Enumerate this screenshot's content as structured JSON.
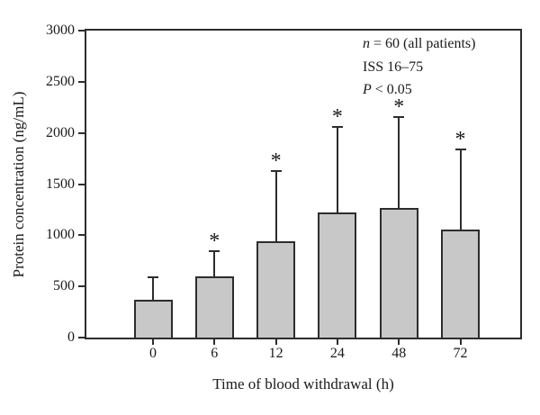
{
  "chart_data": {
    "type": "bar",
    "categories": [
      "0",
      "6",
      "12",
      "24",
      "48",
      "72"
    ],
    "values": [
      370,
      600,
      940,
      1220,
      1270,
      1060
    ],
    "upper_errors": [
      210,
      240,
      680,
      830,
      880,
      770
    ],
    "significant": [
      false,
      true,
      true,
      true,
      true,
      true
    ],
    "significance_marker": "*",
    "xlabel": "Time of blood withdrawal (h)",
    "ylabel": "Protein concentration (ng/mL)",
    "ylim": [
      0,
      3000
    ],
    "yticks": [
      0,
      500,
      1000,
      1500,
      2000,
      2500,
      3000
    ],
    "grid": false,
    "legend_position": "none",
    "bar_fill": "#c8c8c8",
    "bar_border": "#2d2d2d",
    "axis_color": "#2d2d2d"
  },
  "annotation": {
    "line1_var": "n",
    "line1_rest": " = 60 (all patients)",
    "line2": "ISS 16–75",
    "line3_var": "P",
    "line3_rest": " < 0.05"
  }
}
